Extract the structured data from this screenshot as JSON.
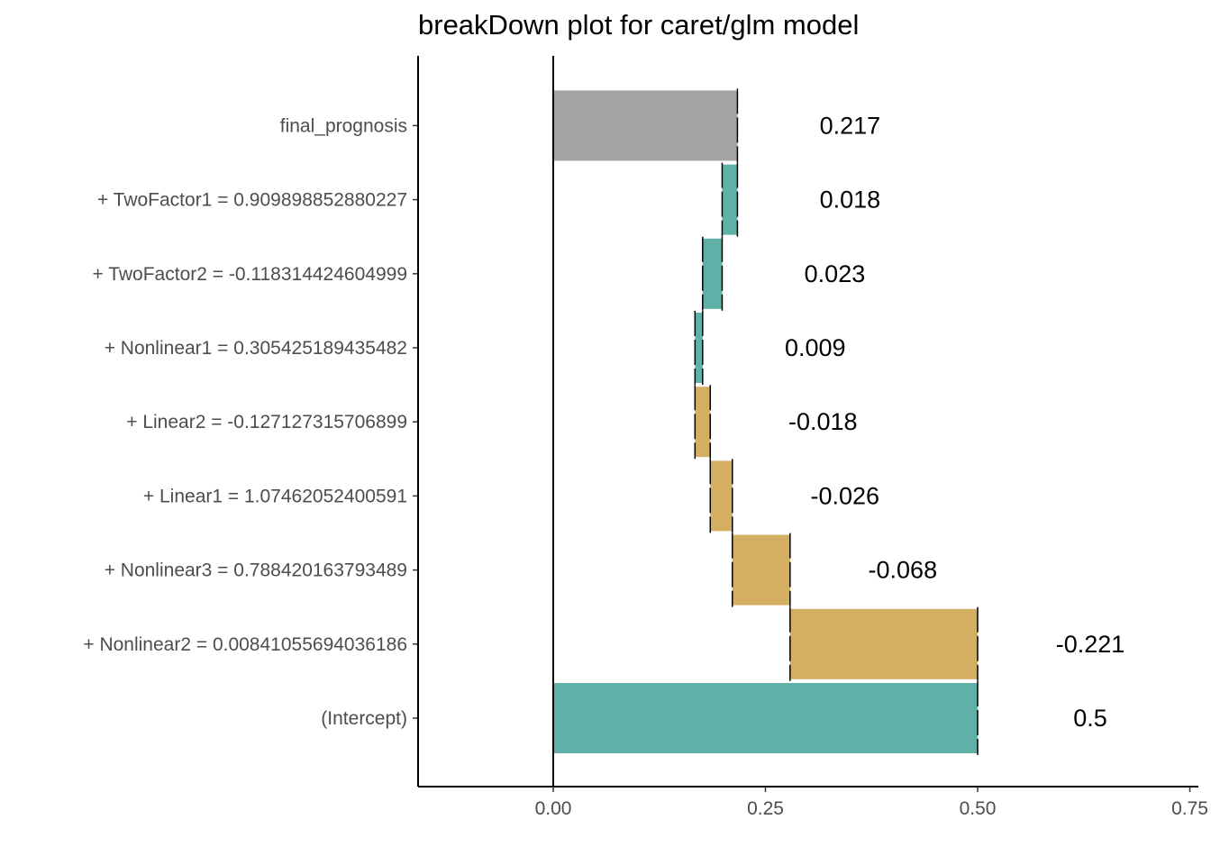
{
  "chart_data": {
    "type": "bar",
    "subtype": "waterfall",
    "orientation": "horizontal",
    "title": "breakDown plot for caret/glm model",
    "xlabel": "",
    "ylabel": "",
    "xlim": [
      -0.16,
      0.76
    ],
    "xticks": [
      0,
      0.25,
      0.5,
      0.75
    ],
    "xtick_labels": [
      "0.00",
      "0.25",
      "0.50",
      "0.75"
    ],
    "grid": false,
    "legend": "none",
    "colors": {
      "positive": "#5FB0A6",
      "negative": "#D4AF62",
      "final": "#A3A3A3",
      "connector": "#000000"
    },
    "categories": [
      "(Intercept)",
      "+ Nonlinear2 = 0.00841055694036186",
      "+ Nonlinear3 = 0.788420163793489",
      "+ Linear1 = 1.07462052400591",
      "+ Linear2 = -0.127127315706899",
      "+ Nonlinear1 = 0.305425189435482",
      "+ TwoFactor2 = -0.118314424604999",
      "+ TwoFactor1 = 0.909898852880227",
      "final_prognosis"
    ],
    "values": [
      0.5,
      -0.221,
      -0.068,
      -0.026,
      -0.018,
      0.009,
      0.023,
      0.018,
      0.217
    ],
    "labels": [
      "0.5",
      "-0.221",
      "-0.068",
      "-0.026",
      "-0.018",
      "0.009",
      "0.023",
      "0.018",
      "0.217"
    ],
    "start": [
      0,
      0.5,
      0.279,
      0.211,
      0.185,
      0.167,
      0.176,
      0.199,
      0
    ],
    "end": [
      0.5,
      0.279,
      0.211,
      0.185,
      0.167,
      0.176,
      0.199,
      0.217,
      0.217
    ],
    "kind": [
      "positive",
      "negative",
      "negative",
      "negative",
      "negative",
      "positive",
      "positive",
      "positive",
      "final"
    ]
  }
}
